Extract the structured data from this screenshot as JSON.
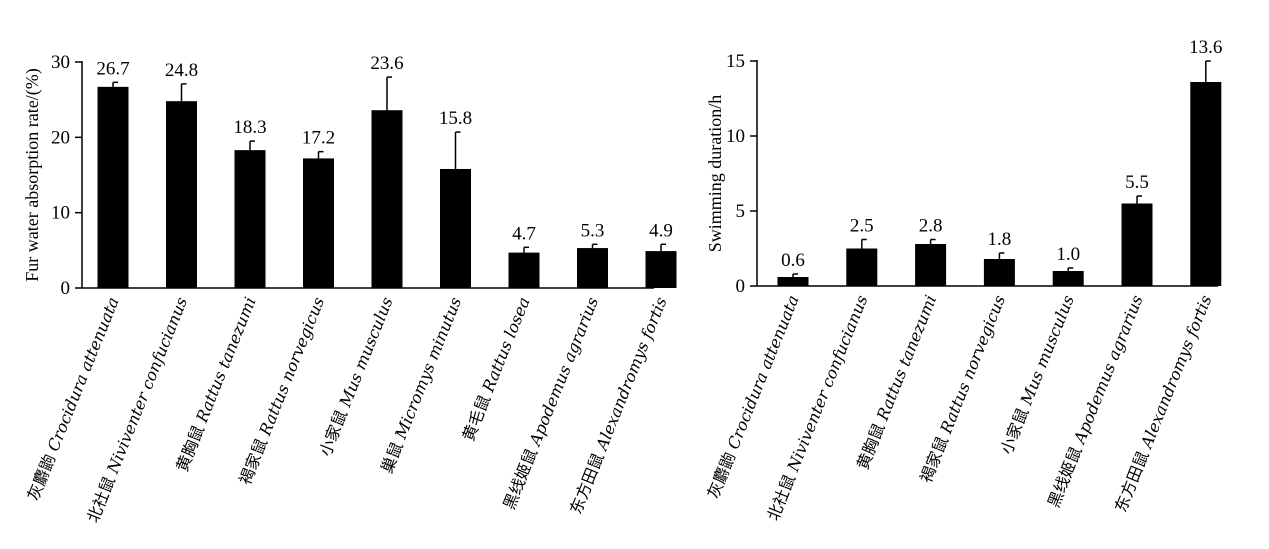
{
  "chart_data": [
    {
      "type": "bar",
      "title": "",
      "xlabel": "",
      "ylabel": "Fur water absorption rate/(%)",
      "ylim": [
        0,
        30
      ],
      "yticks": [
        0,
        10,
        20,
        30
      ],
      "categories": [
        {
          "cn": "灰麝鼩",
          "sci": "Crocidura attenuata"
        },
        {
          "cn": "北社鼠",
          "sci": "Niviventer confucianus"
        },
        {
          "cn": "黄胸鼠",
          "sci": "Rattus tanezumi"
        },
        {
          "cn": "褐家鼠",
          "sci": "Rattus norvegicus"
        },
        {
          "cn": "小家鼠",
          "sci": "Mus musculus"
        },
        {
          "cn": "巢鼠",
          "sci": "Micromys minutus"
        },
        {
          "cn": "黄毛鼠",
          "sci": "Rattus losea"
        },
        {
          "cn": "黑线姬鼠",
          "sci": "Apodemus agrarius"
        },
        {
          "cn": "东方田鼠",
          "sci": "Alexandromys fortis"
        }
      ],
      "values": [
        26.7,
        24.8,
        18.3,
        17.2,
        23.6,
        15.8,
        4.7,
        5.3,
        4.9
      ],
      "value_labels": [
        "26.7",
        "24.8",
        "18.3",
        "17.2",
        "23.6",
        "15.8",
        "4.7",
        "5.3",
        "4.9"
      ],
      "errors": [
        0.6,
        2.3,
        1.2,
        0.9,
        4.4,
        4.9,
        0.7,
        0.5,
        0.9
      ],
      "bar_color": "#000000"
    },
    {
      "type": "bar",
      "title": "",
      "xlabel": "",
      "ylabel": "Swimming duration/h",
      "ylim": [
        0,
        15
      ],
      "yticks": [
        0,
        5,
        10,
        15
      ],
      "categories": [
        {
          "cn": "灰麝鼩",
          "sci": "Crocidura attenuata"
        },
        {
          "cn": "北社鼠",
          "sci": "Niviventer confucianus"
        },
        {
          "cn": "黄胸鼠",
          "sci": "Rattus tanezumi"
        },
        {
          "cn": "褐家鼠",
          "sci": "Rattus norvegicus"
        },
        {
          "cn": "小家鼠",
          "sci": "Mus musculus"
        },
        {
          "cn": "黑线姬鼠",
          "sci": "Apodemus agrarius"
        },
        {
          "cn": "东方田鼠",
          "sci": "Alexandromys fortis"
        }
      ],
      "values": [
        0.6,
        2.5,
        2.8,
        1.8,
        1.0,
        5.5,
        13.6
      ],
      "value_labels": [
        "0.6",
        "2.5",
        "2.8",
        "1.8",
        "1.0",
        "5.5",
        "13.6"
      ],
      "errors": [
        0.2,
        0.6,
        0.3,
        0.4,
        0.2,
        0.5,
        1.4
      ],
      "bar_color": "#000000"
    }
  ]
}
